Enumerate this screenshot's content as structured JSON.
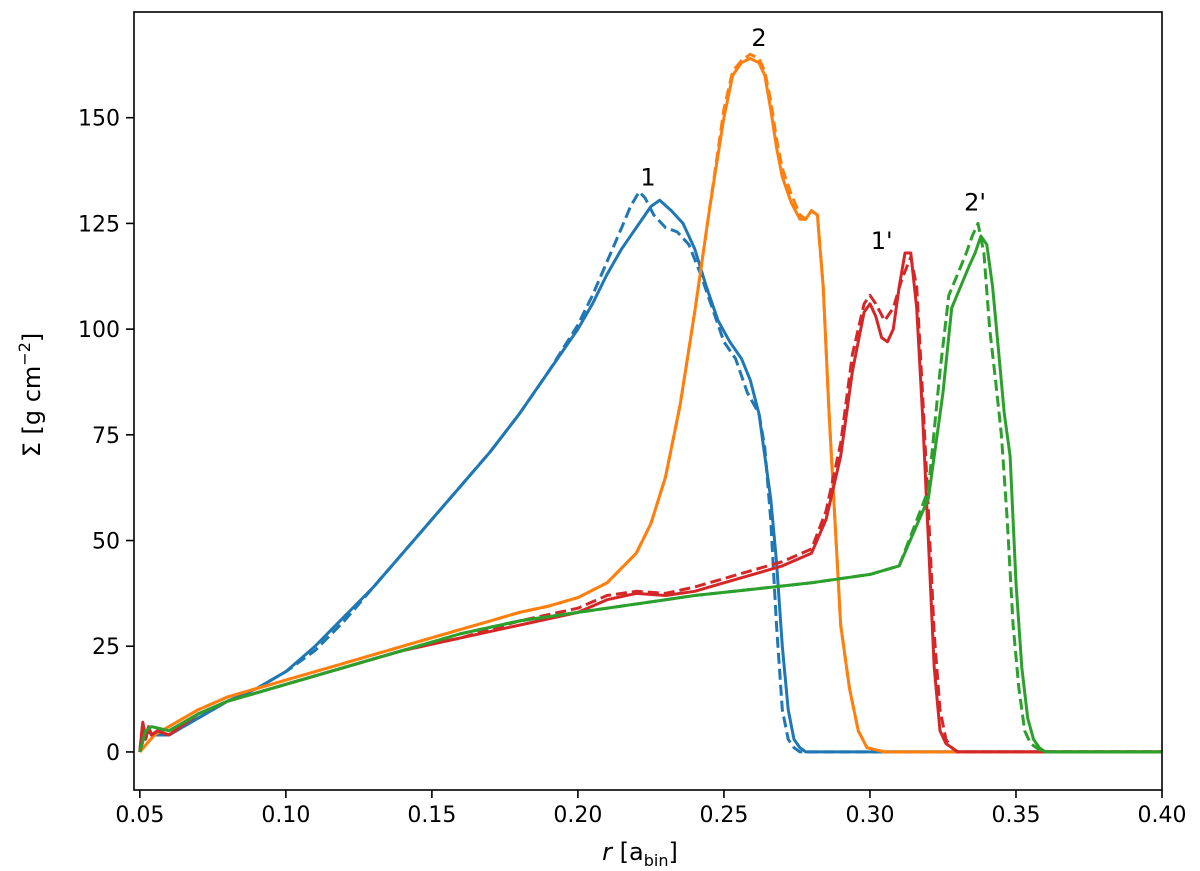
{
  "chart_data": {
    "type": "line",
    "xlabel": "r [a_bin]",
    "xlabel_main": "r",
    "xlabel_unit_open": "[a",
    "xlabel_unit_sub": "bin",
    "xlabel_unit_close": "]",
    "ylabel": "Σ [g cm^-2]",
    "ylabel_main": "Σ [g cm",
    "ylabel_sup": "−2",
    "ylabel_close": "]",
    "xlim": [
      0.048,
      0.4
    ],
    "ylim": [
      -9,
      175
    ],
    "grid": false,
    "x_ticks": [
      0.05,
      0.1,
      0.15,
      0.2,
      0.25,
      0.3,
      0.35,
      0.4
    ],
    "x_tick_labels": [
      "0.05",
      "0.10",
      "0.15",
      "0.20",
      "0.25",
      "0.30",
      "0.35",
      "0.40"
    ],
    "y_ticks": [
      0,
      25,
      50,
      75,
      100,
      125,
      150
    ],
    "y_tick_labels": [
      "0",
      "25",
      "50",
      "75",
      "100",
      "125",
      "150"
    ],
    "annotations": [
      {
        "text": "1",
        "x": 0.224,
        "y": 134
      },
      {
        "text": "2",
        "x": 0.262,
        "y": 167
      },
      {
        "text": "1'",
        "x": 0.304,
        "y": 119
      },
      {
        "text": "2'",
        "x": 0.336,
        "y": 128
      }
    ],
    "series": [
      {
        "color": "#1f77b4",
        "dash": false,
        "x": [
          0.05,
          0.052,
          0.055,
          0.06,
          0.07,
          0.08,
          0.09,
          0.1,
          0.11,
          0.12,
          0.13,
          0.14,
          0.15,
          0.16,
          0.17,
          0.18,
          0.19,
          0.2,
          0.205,
          0.21,
          0.215,
          0.22,
          0.225,
          0.228,
          0.232,
          0.236,
          0.24,
          0.244,
          0.248,
          0.252,
          0.256,
          0.259,
          0.262,
          0.264,
          0.266,
          0.268,
          0.27,
          0.272,
          0.274,
          0.276,
          0.278,
          0.28,
          0.3,
          0.35,
          0.4
        ],
        "y": [
          0,
          5,
          4,
          4,
          8,
          12,
          15,
          19,
          25,
          32,
          39,
          47,
          55,
          63,
          71,
          80,
          90,
          100,
          106,
          113,
          119,
          124,
          129,
          130.5,
          128,
          125,
          119,
          110,
          102,
          97,
          93,
          88,
          80,
          70,
          60,
          45,
          25,
          10,
          3,
          1,
          0,
          0,
          0,
          0,
          0
        ]
      },
      {
        "color": "#1f77b4",
        "dash": true,
        "x": [
          0.05,
          0.052,
          0.055,
          0.06,
          0.07,
          0.08,
          0.09,
          0.1,
          0.11,
          0.12,
          0.13,
          0.14,
          0.15,
          0.16,
          0.17,
          0.18,
          0.19,
          0.2,
          0.205,
          0.21,
          0.215,
          0.218,
          0.221,
          0.223,
          0.226,
          0.23,
          0.234,
          0.238,
          0.242,
          0.246,
          0.25,
          0.254,
          0.258,
          0.262,
          0.264,
          0.266,
          0.268,
          0.27,
          0.272,
          0.274,
          0.276,
          0.28,
          0.3,
          0.35,
          0.4
        ],
        "y": [
          0,
          5,
          4,
          4,
          8,
          12,
          15,
          19,
          24,
          31,
          39,
          47,
          55,
          63,
          71,
          80,
          90,
          101,
          108,
          116,
          124,
          129,
          132.5,
          131,
          127,
          124,
          123,
          120,
          113,
          105,
          97,
          93,
          85,
          80,
          72,
          55,
          30,
          10,
          3,
          1,
          0,
          0,
          0,
          0,
          0
        ]
      },
      {
        "color": "#ff7f0e",
        "dash": false,
        "x": [
          0.05,
          0.055,
          0.06,
          0.07,
          0.08,
          0.09,
          0.1,
          0.12,
          0.14,
          0.16,
          0.17,
          0.18,
          0.19,
          0.2,
          0.21,
          0.22,
          0.225,
          0.23,
          0.235,
          0.24,
          0.245,
          0.25,
          0.253,
          0.256,
          0.259,
          0.262,
          0.264,
          0.266,
          0.268,
          0.27,
          0.273,
          0.276,
          0.278,
          0.28,
          0.282,
          0.284,
          0.286,
          0.288,
          0.29,
          0.293,
          0.296,
          0.299,
          0.302,
          0.305,
          0.31,
          0.35,
          0.4
        ],
        "y": [
          0,
          4,
          6,
          10,
          13,
          15,
          17,
          21,
          25,
          29,
          31,
          33,
          34.5,
          36.5,
          40,
          47,
          54,
          65,
          82,
          104,
          128,
          150,
          160,
          163,
          164,
          163,
          160,
          152,
          143,
          136,
          130,
          126,
          126,
          128,
          127,
          110,
          80,
          55,
          30,
          15,
          5,
          1,
          0.5,
          0,
          0,
          0,
          0
        ]
      },
      {
        "color": "#ff7f0e",
        "dash": true,
        "x": [
          0.05,
          0.055,
          0.06,
          0.07,
          0.08,
          0.09,
          0.1,
          0.12,
          0.14,
          0.16,
          0.17,
          0.18,
          0.19,
          0.2,
          0.21,
          0.22,
          0.225,
          0.23,
          0.235,
          0.24,
          0.245,
          0.25,
          0.253,
          0.256,
          0.259,
          0.262,
          0.264,
          0.266,
          0.268,
          0.27,
          0.273,
          0.276,
          0.278,
          0.28,
          0.282,
          0.284,
          0.286,
          0.288,
          0.29,
          0.293,
          0.296,
          0.299,
          0.302,
          0.305,
          0.31,
          0.35,
          0.4
        ],
        "y": [
          0,
          4,
          6,
          10,
          13,
          15,
          17,
          21,
          25,
          29,
          31,
          33,
          34.5,
          36.5,
          40,
          47,
          54,
          65,
          82,
          104,
          128,
          152,
          161,
          163.5,
          165,
          164,
          161,
          154,
          145,
          138,
          132,
          127,
          126,
          128,
          127,
          110,
          80,
          55,
          30,
          15,
          5,
          1,
          0.5,
          0,
          0,
          0,
          0
        ]
      },
      {
        "color": "#d62728",
        "dash": false,
        "x": [
          0.05,
          0.051,
          0.052,
          0.053,
          0.054,
          0.056,
          0.06,
          0.07,
          0.08,
          0.09,
          0.1,
          0.12,
          0.14,
          0.16,
          0.18,
          0.2,
          0.21,
          0.22,
          0.23,
          0.24,
          0.25,
          0.26,
          0.27,
          0.28,
          0.285,
          0.29,
          0.294,
          0.298,
          0.3,
          0.302,
          0.304,
          0.306,
          0.308,
          0.31,
          0.312,
          0.314,
          0.316,
          0.318,
          0.32,
          0.322,
          0.324,
          0.326,
          0.328,
          0.33,
          0.332,
          0.34,
          0.4
        ],
        "y": [
          0,
          7,
          3,
          6,
          4,
          5,
          4,
          9,
          12,
          14,
          16,
          20,
          24,
          27,
          30,
          33,
          36,
          37.5,
          37,
          38,
          40,
          42,
          44,
          47,
          55,
          70,
          90,
          104,
          106,
          103,
          98,
          97,
          100,
          110,
          118,
          118,
          105,
          80,
          50,
          20,
          5,
          2,
          1,
          0,
          0,
          0,
          0
        ]
      },
      {
        "color": "#d62728",
        "dash": true,
        "x": [
          0.05,
          0.051,
          0.052,
          0.053,
          0.054,
          0.056,
          0.06,
          0.07,
          0.08,
          0.09,
          0.1,
          0.12,
          0.14,
          0.16,
          0.18,
          0.2,
          0.21,
          0.22,
          0.23,
          0.24,
          0.25,
          0.26,
          0.27,
          0.28,
          0.285,
          0.29,
          0.294,
          0.298,
          0.3,
          0.302,
          0.305,
          0.308,
          0.311,
          0.314,
          0.316,
          0.318,
          0.32,
          0.322,
          0.324,
          0.326,
          0.328,
          0.33,
          0.332,
          0.34,
          0.4
        ],
        "y": [
          0,
          7,
          3,
          6,
          4,
          5,
          4,
          9,
          12,
          14,
          16,
          20,
          24,
          27,
          31,
          34,
          37,
          38,
          37.5,
          39,
          41,
          43,
          45,
          48,
          57,
          73,
          94,
          106,
          108,
          106,
          102,
          105,
          112,
          117,
          110,
          85,
          57,
          28,
          10,
          3,
          1,
          0,
          0,
          0,
          0
        ]
      },
      {
        "color": "#2ca02c",
        "dash": false,
        "x": [
          0.05,
          0.052,
          0.054,
          0.06,
          0.07,
          0.08,
          0.09,
          0.1,
          0.12,
          0.14,
          0.16,
          0.18,
          0.2,
          0.22,
          0.24,
          0.26,
          0.28,
          0.3,
          0.31,
          0.32,
          0.325,
          0.328,
          0.331,
          0.334,
          0.336,
          0.338,
          0.34,
          0.342,
          0.344,
          0.346,
          0.348,
          0.35,
          0.352,
          0.354,
          0.356,
          0.358,
          0.36,
          0.362,
          0.37,
          0.4
        ],
        "y": [
          0,
          5,
          6,
          5,
          9,
          12,
          14,
          16,
          20,
          24,
          28,
          31,
          33,
          35,
          37,
          38.5,
          40,
          42,
          44,
          60,
          85,
          105,
          110,
          115,
          118,
          122,
          120,
          110,
          95,
          80,
          70,
          40,
          20,
          8,
          3,
          1,
          0,
          0,
          0,
          0
        ]
      },
      {
        "color": "#2ca02c",
        "dash": true,
        "x": [
          0.05,
          0.052,
          0.054,
          0.06,
          0.07,
          0.08,
          0.09,
          0.1,
          0.12,
          0.14,
          0.16,
          0.18,
          0.2,
          0.22,
          0.24,
          0.26,
          0.28,
          0.3,
          0.31,
          0.32,
          0.324,
          0.327,
          0.33,
          0.333,
          0.335,
          0.337,
          0.339,
          0.341,
          0.343,
          0.345,
          0.347,
          0.349,
          0.351,
          0.353,
          0.355,
          0.357,
          0.359,
          0.361,
          0.37,
          0.4
        ],
        "y": [
          0,
          5,
          6,
          5,
          9,
          12,
          14,
          16,
          20,
          24,
          28,
          31,
          33,
          35,
          37,
          38.5,
          40,
          42,
          44,
          62,
          90,
          108,
          113,
          118,
          122,
          125,
          118,
          100,
          88,
          75,
          55,
          30,
          15,
          5,
          2,
          1,
          0,
          0,
          0,
          0
        ]
      }
    ]
  }
}
